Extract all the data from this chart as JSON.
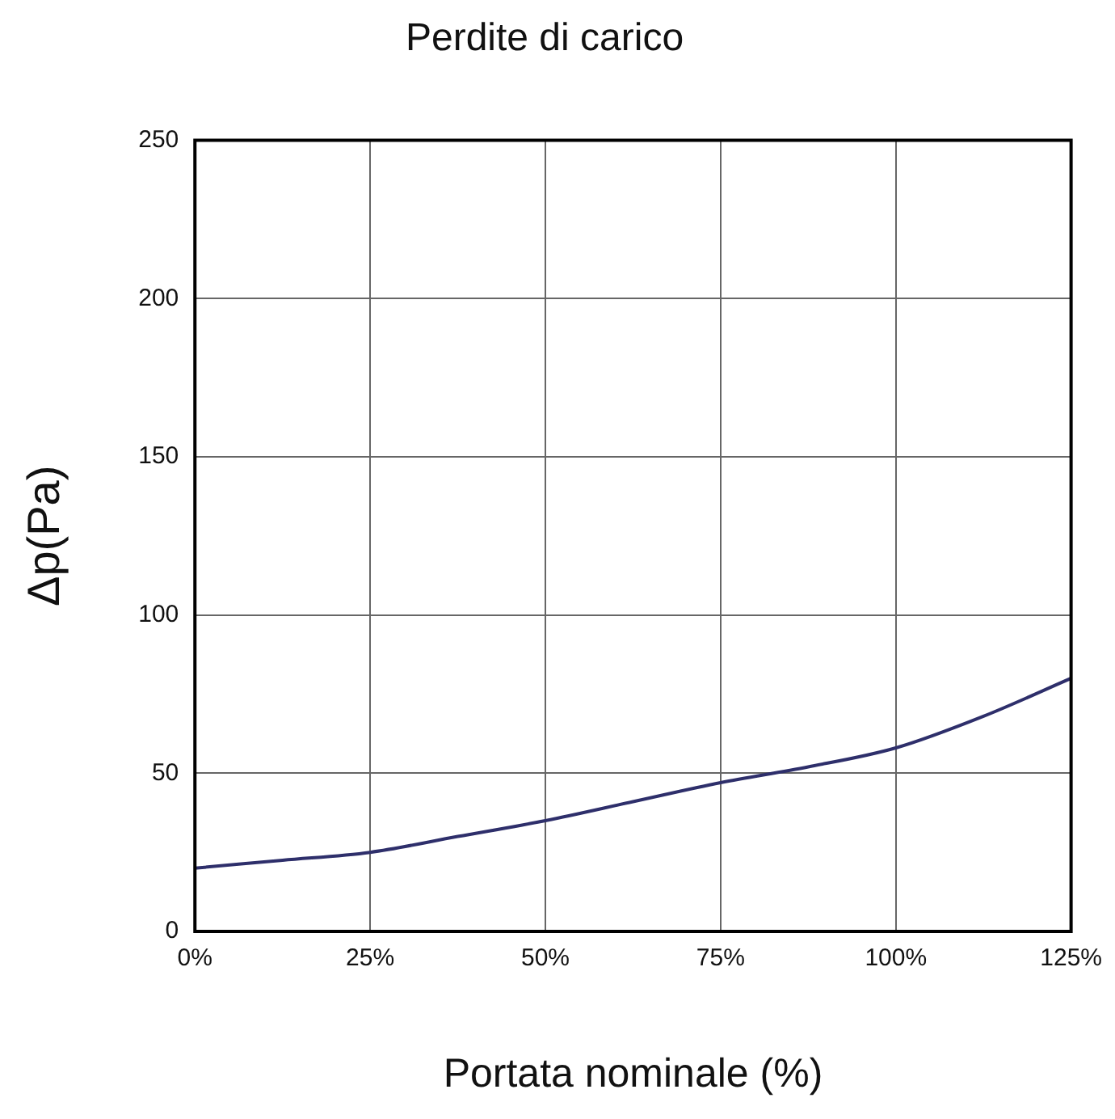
{
  "chart_data": {
    "type": "line",
    "title": "Perdite di carico",
    "xlabel": "Portata nominale (%)",
    "ylabel": "Δp(Pa)",
    "x": [
      0,
      12.5,
      25,
      37.5,
      50,
      62.5,
      75,
      87.5,
      100,
      112.5,
      125
    ],
    "series": [
      {
        "color": "#2e2f6b",
        "values": [
          20,
          22.5,
          25,
          30,
          35,
          41,
          47,
          52,
          58,
          68,
          80
        ]
      }
    ],
    "xlim": [
      0,
      125
    ],
    "xticks": [
      {
        "value": 0,
        "label": "0%"
      },
      {
        "value": 25,
        "label": "25%"
      },
      {
        "value": 50,
        "label": "50%"
      },
      {
        "value": 75,
        "label": "75%"
      },
      {
        "value": 100,
        "label": "100%"
      },
      {
        "value": 125,
        "label": "125%"
      }
    ],
    "ylim": [
      0,
      250
    ],
    "yticks": [
      0,
      50,
      100,
      150,
      200,
      250
    ],
    "grid": true,
    "legend": false,
    "marker": "none",
    "line_style": "solid"
  }
}
